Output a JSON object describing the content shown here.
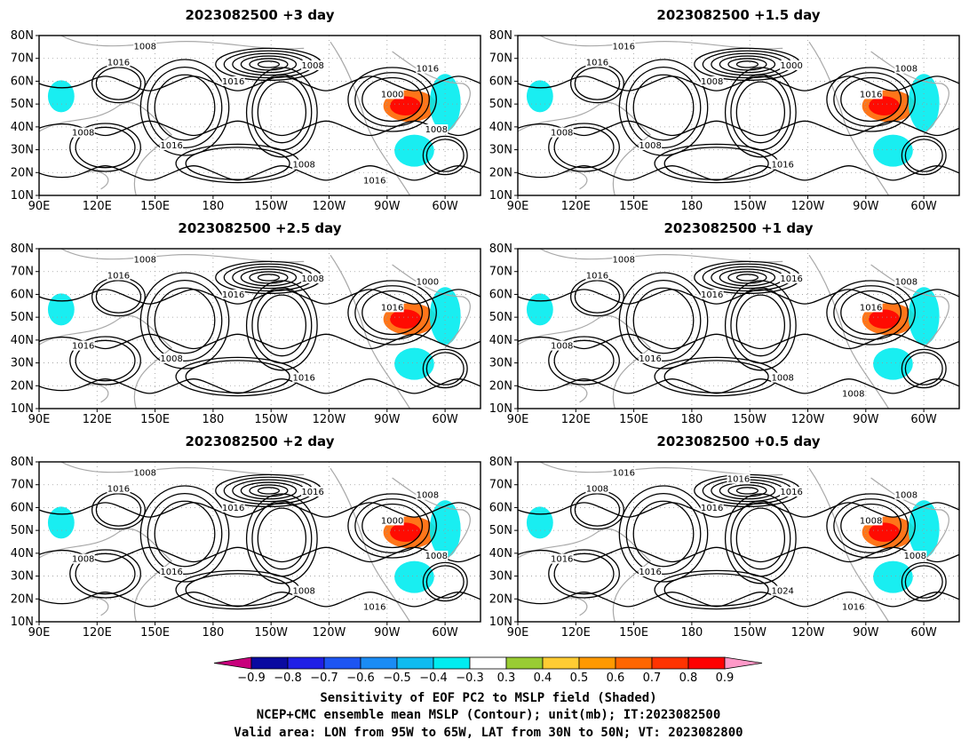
{
  "palette": {
    "neg": [
      "#c8007c",
      "#0a0aa0",
      "#1f1fe6",
      "#1d55f2",
      "#1a8cf5",
      "#0fbbf0",
      "#00ecf0"
    ],
    "pos": [
      "#99cc33",
      "#ffcc33",
      "#ff9900",
      "#ff6600",
      "#ff3300",
      "#ff0000",
      "#ff99c8"
    ],
    "coast": "#a8a8a8",
    "contour": "#000000"
  },
  "map": {
    "lon_labels": [
      "90E",
      "120E",
      "150E",
      "180",
      "150W",
      "120W",
      "90W",
      "60W"
    ],
    "lat_labels": [
      "10N",
      "20N",
      "30N",
      "40N",
      "50N",
      "60N",
      "70N",
      "80N"
    ]
  },
  "panels": [
    {
      "title": "2023082500  +3 day",
      "contour_labels": [
        "1008",
        "1016",
        "1008",
        "1016",
        "1016",
        "1000",
        "1008",
        "1016",
        "1008",
        "1016",
        "1008"
      ]
    },
    {
      "title": "2023082500  +1.5 day",
      "contour_labels": [
        "1016",
        "1016",
        "1000",
        "1008",
        "1008",
        "1016",
        "1008",
        "1008",
        "1016"
      ]
    },
    {
      "title": "2023082500  +2.5 day",
      "contour_labels": [
        "1008",
        "1016",
        "1008",
        "1000",
        "1016",
        "1016",
        "1016",
        "1008",
        "1016"
      ]
    },
    {
      "title": "2023082500  +1 day",
      "contour_labels": [
        "1008",
        "1016",
        "1016",
        "1008",
        "1016",
        "1016",
        "1008",
        "1016",
        "1008",
        "1008"
      ]
    },
    {
      "title": "2023082500  +2 day",
      "contour_labels": [
        "1008",
        "1016",
        "1016",
        "1008",
        "1016",
        "1000",
        "1008",
        "1016",
        "1008",
        "1016",
        "1008"
      ]
    },
    {
      "title": "2023082500  +0.5 day",
      "contour_labels": [
        "1016",
        "1008",
        "1016",
        "1008",
        "1016",
        "1008",
        "1016",
        "1016",
        "1024",
        "1016",
        "1008",
        "1016"
      ]
    }
  ],
  "colorbar": {
    "ticks": [
      "−0.9",
      "−0.8",
      "−0.7",
      "−0.6",
      "−0.5",
      "−0.4",
      "−0.3",
      "0.3",
      "0.4",
      "0.5",
      "0.6",
      "0.7",
      "0.8",
      "0.9"
    ]
  },
  "caption": {
    "line1": "Sensitivity of EOF PC2 to MSLP field (Shaded)",
    "line2": "NCEP+CMC ensemble mean MSLP (Contour); unit(mb); IT:2023082500",
    "line3": "Valid area: LON from 95W to 65W, LAT from 30N to 50N; VT: 2023082800"
  }
}
